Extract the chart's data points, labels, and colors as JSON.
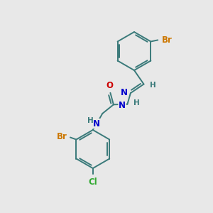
{
  "background_color": "#e8e8e8",
  "bond_color": "#3a7a7a",
  "n_color": "#0000cc",
  "o_color": "#cc0000",
  "br_color": "#cc7700",
  "cl_color": "#33aa33",
  "h_color": "#3a7a7a",
  "figsize": [
    3.0,
    3.0
  ],
  "dpi": 100,
  "xlim": [
    0,
    10
  ],
  "ylim": [
    0,
    10
  ]
}
